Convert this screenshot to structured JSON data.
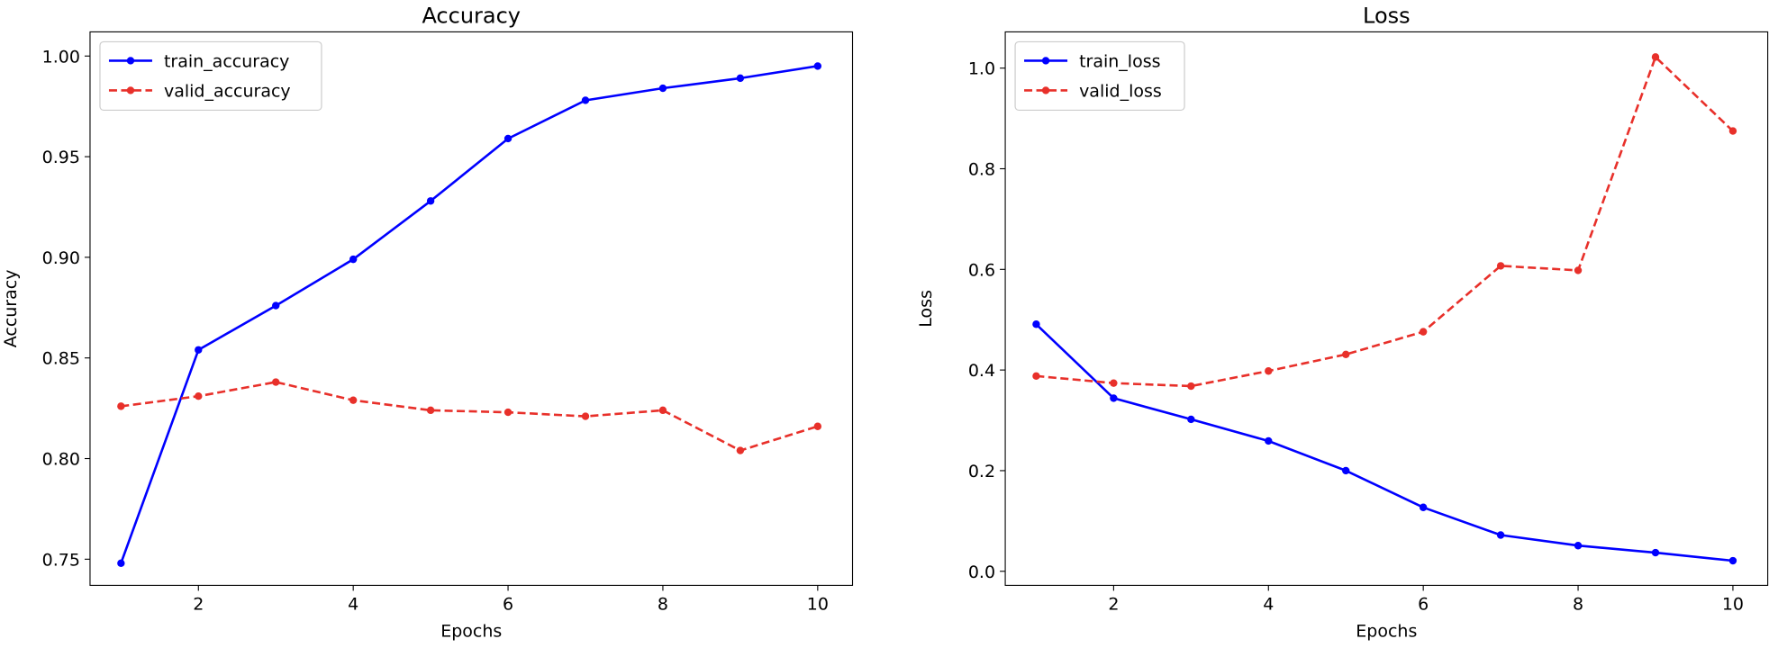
{
  "chart_data": [
    {
      "type": "line",
      "title": "Accuracy",
      "xlabel": "Epochs",
      "ylabel": "Accuracy",
      "x": [
        1,
        2,
        3,
        4,
        5,
        6,
        7,
        8,
        9,
        10
      ],
      "xlim": [
        0.6,
        10.45
      ],
      "ylim": [
        0.737,
        1.012
      ],
      "xticks": [
        2,
        4,
        6,
        8,
        10
      ],
      "yticks": [
        0.75,
        0.8,
        0.85,
        0.9,
        0.95,
        1.0
      ],
      "ytick_labels": [
        "0.75",
        "0.80",
        "0.85",
        "0.90",
        "0.95",
        "1.00"
      ],
      "grid": false,
      "legend_position": "top-left",
      "series": [
        {
          "name": "train_accuracy",
          "color": "#0000ff",
          "style": "solid",
          "values": [
            0.748,
            0.854,
            0.876,
            0.899,
            0.928,
            0.959,
            0.978,
            0.984,
            0.989,
            0.995
          ]
        },
        {
          "name": "valid_accuracy",
          "color": "#e8302a",
          "style": "dashed",
          "values": [
            0.826,
            0.831,
            0.838,
            0.829,
            0.824,
            0.823,
            0.821,
            0.824,
            0.804,
            0.816
          ]
        }
      ]
    },
    {
      "type": "line",
      "title": "Loss",
      "xlabel": "Epochs",
      "ylabel": "Loss",
      "x": [
        1,
        2,
        3,
        4,
        5,
        6,
        7,
        8,
        9,
        10
      ],
      "xlim": [
        0.6,
        10.45
      ],
      "ylim": [
        -0.028,
        1.072
      ],
      "xticks": [
        2,
        4,
        6,
        8,
        10
      ],
      "yticks": [
        0.0,
        0.2,
        0.4,
        0.6,
        0.8,
        1.0
      ],
      "ytick_labels": [
        "0.0",
        "0.2",
        "0.4",
        "0.6",
        "0.8",
        "1.0"
      ],
      "grid": false,
      "legend_position": "top-left",
      "series": [
        {
          "name": "train_loss",
          "color": "#0000ff",
          "style": "solid",
          "values": [
            0.491,
            0.344,
            0.302,
            0.259,
            0.2,
            0.127,
            0.072,
            0.051,
            0.037,
            0.021
          ]
        },
        {
          "name": "valid_loss",
          "color": "#e8302a",
          "style": "dashed",
          "values": [
            0.388,
            0.374,
            0.368,
            0.398,
            0.431,
            0.476,
            0.607,
            0.598,
            1.022,
            0.875
          ]
        }
      ]
    }
  ]
}
